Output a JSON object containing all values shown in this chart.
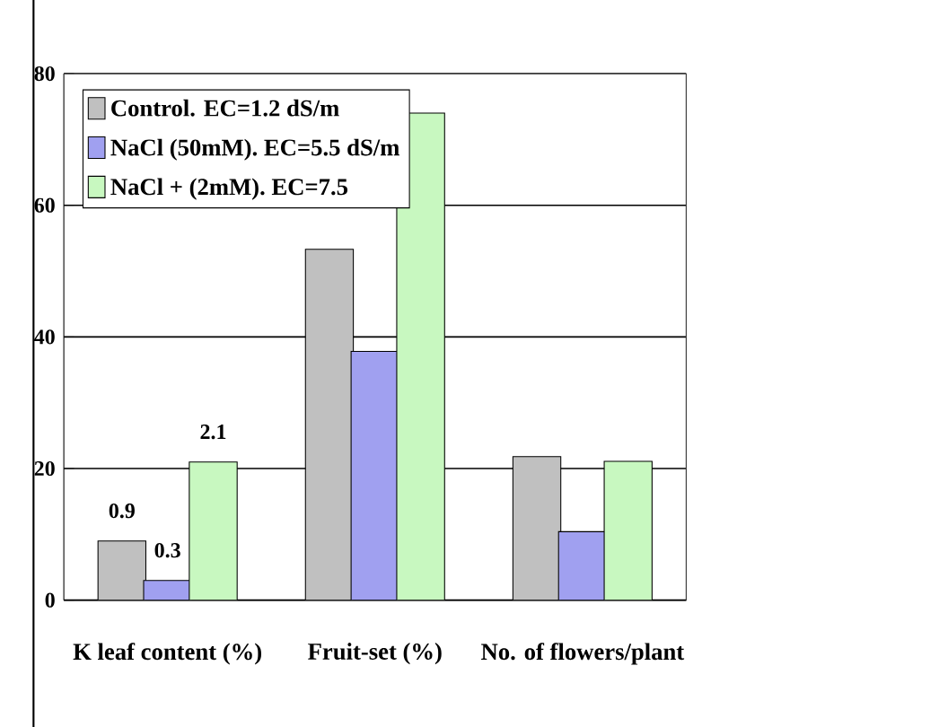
{
  "chart_data": {
    "type": "bar",
    "categories": [
      "K leaf content (%)",
      "Fruit-set (%)",
      "No. of flowers/plant"
    ],
    "series": [
      {
        "name": "Control. EC=1.2 dS/m",
        "color": "#c0c0c0",
        "values": [
          9.0,
          53.3,
          21.8
        ]
      },
      {
        "name": "NaCl (50mM). EC=5.5 dS/m",
        "color": "#a0a0f0",
        "values": [
          3.0,
          37.8,
          10.4
        ]
      },
      {
        "name": "NaCl + (2mM). EC=7.5",
        "color": "#c8f8c0",
        "values": [
          21.0,
          74.0,
          21.1
        ]
      }
    ],
    "annotations": [
      "0.9",
      "0.3",
      "2.1"
    ],
    "ylim": [
      0,
      80
    ],
    "yticks": [
      0,
      20,
      40,
      60,
      80
    ],
    "grid": "y",
    "legend": "top left"
  }
}
